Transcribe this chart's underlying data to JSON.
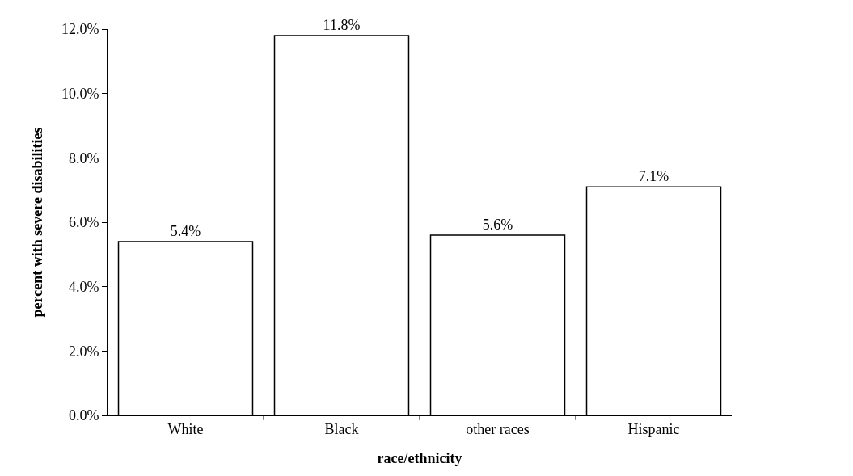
{
  "chart_data": {
    "type": "bar",
    "xlabel": "race/ethnicity",
    "ylabel": "percent with severe disabilities",
    "categories": [
      "White",
      "Black",
      "other races",
      "Hispanic"
    ],
    "values": [
      5.4,
      11.8,
      5.6,
      7.1
    ],
    "value_labels": [
      "5.4%",
      "11.8%",
      "5.6%",
      "7.1%"
    ],
    "color": "#ffffff",
    "ylim": [
      0,
      12
    ],
    "yticks": [
      {
        "value": 0,
        "label": "0.0%"
      },
      {
        "value": 2,
        "label": "2.0%"
      },
      {
        "value": 4,
        "label": "4.0%"
      },
      {
        "value": 6,
        "label": "6.0%"
      },
      {
        "value": 8,
        "label": "8.0%"
      },
      {
        "value": 10,
        "label": "10.0%"
      },
      {
        "value": 12,
        "label": "12.0%"
      }
    ],
    "grid": false
  }
}
